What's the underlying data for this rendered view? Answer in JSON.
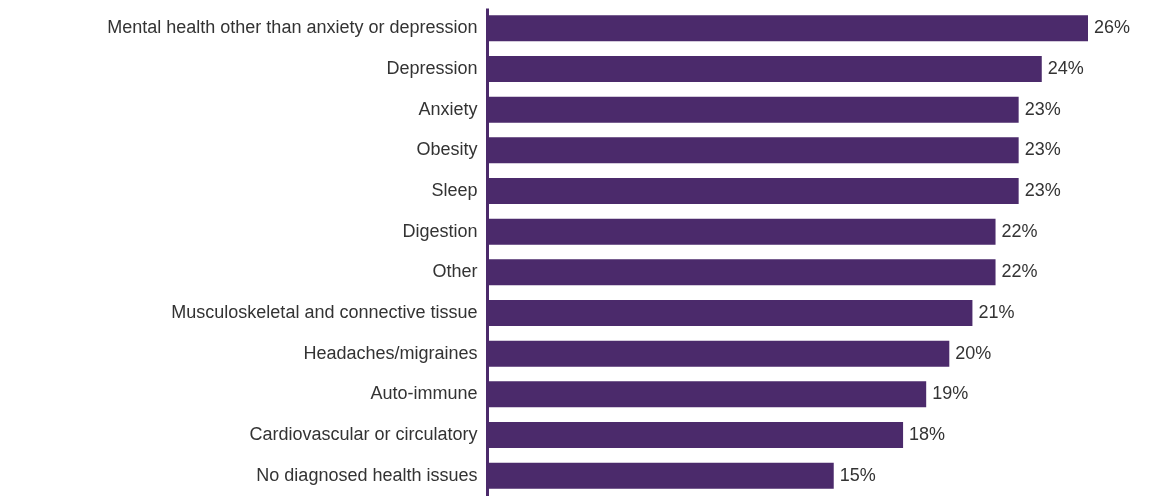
{
  "chart_data": {
    "type": "bar",
    "orientation": "horizontal",
    "categories": [
      "Mental health other than anxiety or depression",
      "Depression",
      "Anxiety",
      "Obesity",
      "Sleep",
      "Digestion",
      "Other",
      "Musculoskeletal and connective tissue",
      "Headaches/migraines",
      "Auto-immune",
      "Cardiovascular or circulatory",
      "No diagnosed health issues"
    ],
    "values": [
      26,
      24,
      23,
      23,
      23,
      22,
      22,
      21,
      20,
      19,
      18,
      15
    ],
    "value_labels": [
      "26%",
      "24%",
      "23%",
      "23%",
      "23%",
      "22%",
      "22%",
      "21%",
      "20%",
      "19%",
      "18%",
      "15%"
    ],
    "color": "#4b2a6b"
  }
}
